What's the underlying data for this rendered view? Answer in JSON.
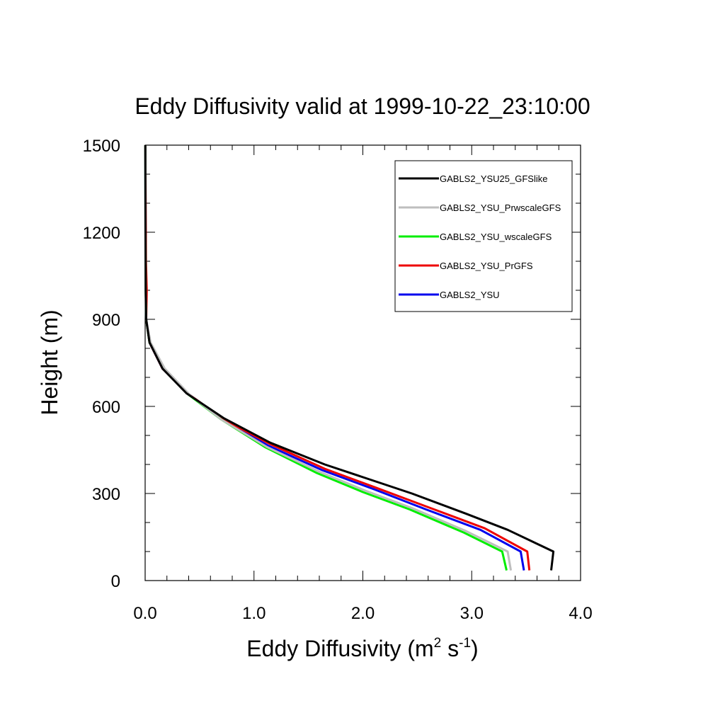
{
  "chart_data": {
    "type": "line",
    "title": "Eddy Diffusivity valid at 1999-10-22_23:10:00",
    "xlabel": {
      "main": "Eddy Diffusivity (m",
      "sup1": "2",
      "mid": " s",
      "sup2": "-1",
      "end": ")"
    },
    "ylabel": "Height (m)",
    "xlim": [
      0,
      4
    ],
    "ylim": [
      0,
      1500
    ],
    "x_ticks": [
      {
        "value": 0,
        "label": "0.0"
      },
      {
        "value": 1,
        "label": "1.0"
      },
      {
        "value": 2,
        "label": "2.0"
      },
      {
        "value": 3,
        "label": "3.0"
      },
      {
        "value": 4,
        "label": "4.0"
      }
    ],
    "y_ticks": [
      {
        "value": 0,
        "label": "0"
      },
      {
        "value": 300,
        "label": "300"
      },
      {
        "value": 600,
        "label": "600"
      },
      {
        "value": 900,
        "label": "900"
      },
      {
        "value": 1200,
        "label": "1200"
      },
      {
        "value": 1500,
        "label": "1500"
      }
    ],
    "grid": false,
    "legend_position": "top-right",
    "series": [
      {
        "name": "GABLS2_YSU25_GFSlike",
        "color": "#000000",
        "x": [
          3.73,
          3.75,
          3.33,
          2.95,
          2.45,
          2.05,
          1.65,
          1.15,
          0.72,
          0.38,
          0.16,
          0.04,
          0.01,
          0.005,
          0.003,
          0.002
        ],
        "y": [
          35,
          100,
          175,
          230,
          300,
          350,
          400,
          475,
          560,
          645,
          730,
          820,
          900,
          1000,
          1200,
          1500
        ]
      },
      {
        "name": "GABLS2_YSU_PrwscaleGFS",
        "color": "#bebebe",
        "x": [
          3.36,
          3.33,
          2.95,
          2.45,
          2.02,
          1.6,
          1.12,
          0.7,
          0.41,
          0.18,
          0.05,
          0.01,
          0.005,
          0.003,
          0.002
        ],
        "y": [
          35,
          100,
          170,
          250,
          310,
          375,
          460,
          555,
          640,
          730,
          820,
          900,
          1000,
          1200,
          1500
        ]
      },
      {
        "name": "GABLS2_YSU_wscaleGFS",
        "color": "#00ee00",
        "x": [
          3.32,
          3.28,
          2.93,
          2.43,
          2.0,
          1.58,
          1.1,
          0.7,
          0.4,
          0.17,
          0.04,
          0.01,
          0.005,
          0.003,
          0.002
        ],
        "y": [
          35,
          100,
          165,
          245,
          305,
          370,
          460,
          555,
          640,
          730,
          820,
          900,
          1000,
          1200,
          1500
        ]
      },
      {
        "name": "GABLS2_YSU_PrGFS",
        "color": "#ee0000",
        "x": [
          3.53,
          3.51,
          3.12,
          2.62,
          2.12,
          1.65,
          1.15,
          0.72,
          0.39,
          0.16,
          0.04,
          0.01,
          0.015,
          0.008,
          0.002
        ],
        "y": [
          35,
          100,
          180,
          250,
          320,
          385,
          470,
          555,
          645,
          730,
          820,
          900,
          1000,
          1100,
          1500
        ]
      },
      {
        "name": "GABLS2_YSU",
        "color": "#0000ee",
        "x": [
          3.48,
          3.45,
          3.08,
          2.58,
          2.1,
          1.63,
          1.13,
          0.71,
          0.39,
          0.16,
          0.04,
          0.01,
          0.005,
          0.003,
          0.002
        ],
        "y": [
          35,
          100,
          175,
          245,
          315,
          380,
          465,
          555,
          645,
          730,
          820,
          900,
          1000,
          1200,
          1500
        ]
      }
    ]
  }
}
